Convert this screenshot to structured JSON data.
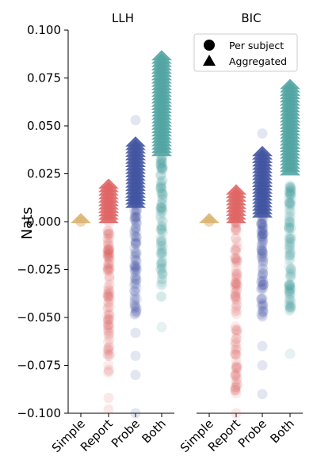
{
  "chart_data": {
    "type": "scatter",
    "ylabel": "Nats",
    "ylim": [
      -0.1,
      0.1
    ],
    "yticks": [
      0.1,
      0.075,
      0.05,
      0.025,
      0.0,
      -0.025,
      -0.05,
      -0.075,
      -0.1
    ],
    "ytick_labels": [
      "0.100",
      "0.075",
      "0.050",
      "0.025",
      "0.000",
      "−0.025",
      "−0.050",
      "−0.075",
      "−0.100"
    ],
    "categories": [
      "Simple",
      "Report",
      "Probe",
      "Both"
    ],
    "colors": {
      "Simple": "#d9b26b",
      "Report": "#e06666",
      "Probe": "#4255a2",
      "Both": "#52a5a3"
    },
    "legend": {
      "position": "top-right",
      "entries": [
        {
          "label": "Per subject",
          "marker": "circle"
        },
        {
          "label": "Aggregated",
          "marker": "triangle"
        }
      ]
    },
    "panels": [
      {
        "title": "LLH",
        "series": [
          {
            "name": "Simple",
            "per_subject": {
              "min": 0.0,
              "max": 0.0,
              "outliers": []
            },
            "aggregated": {
              "min": 0.0,
              "max": 0.0
            }
          },
          {
            "name": "Report",
            "per_subject": {
              "min": -0.08,
              "max": 0.01,
              "outliers": [
                -0.092,
                -0.098
              ]
            },
            "aggregated": {
              "min": 0.0,
              "max": 0.018
            }
          },
          {
            "name": "Probe",
            "per_subject": {
              "min": -0.05,
              "max": 0.025,
              "outliers": [
                0.053,
                -0.058,
                -0.07,
                -0.08,
                -0.1
              ]
            },
            "aggregated": {
              "min": 0.008,
              "max": 0.04
            }
          },
          {
            "name": "Both",
            "per_subject": {
              "min": -0.04,
              "max": 0.035,
              "outliers": [
                -0.055
              ]
            },
            "aggregated": {
              "min": 0.035,
              "max": 0.085
            }
          }
        ]
      },
      {
        "title": "BIC",
        "series": [
          {
            "name": "Simple",
            "per_subject": {
              "min": 0.0,
              "max": 0.0,
              "outliers": []
            },
            "aggregated": {
              "min": 0.0,
              "max": 0.0
            }
          },
          {
            "name": "Report",
            "per_subject": {
              "min": -0.09,
              "max": 0.01,
              "outliers": [
                -0.1
              ]
            },
            "aggregated": {
              "min": 0.0,
              "max": 0.015
            }
          },
          {
            "name": "Probe",
            "per_subject": {
              "min": -0.05,
              "max": 0.02,
              "outliers": [
                0.046,
                -0.065,
                -0.075,
                -0.09
              ]
            },
            "aggregated": {
              "min": 0.003,
              "max": 0.035
            }
          },
          {
            "name": "Both",
            "per_subject": {
              "min": -0.048,
              "max": 0.02,
              "outliers": [
                -0.069
              ]
            },
            "aggregated": {
              "min": 0.025,
              "max": 0.07
            }
          }
        ]
      }
    ]
  }
}
